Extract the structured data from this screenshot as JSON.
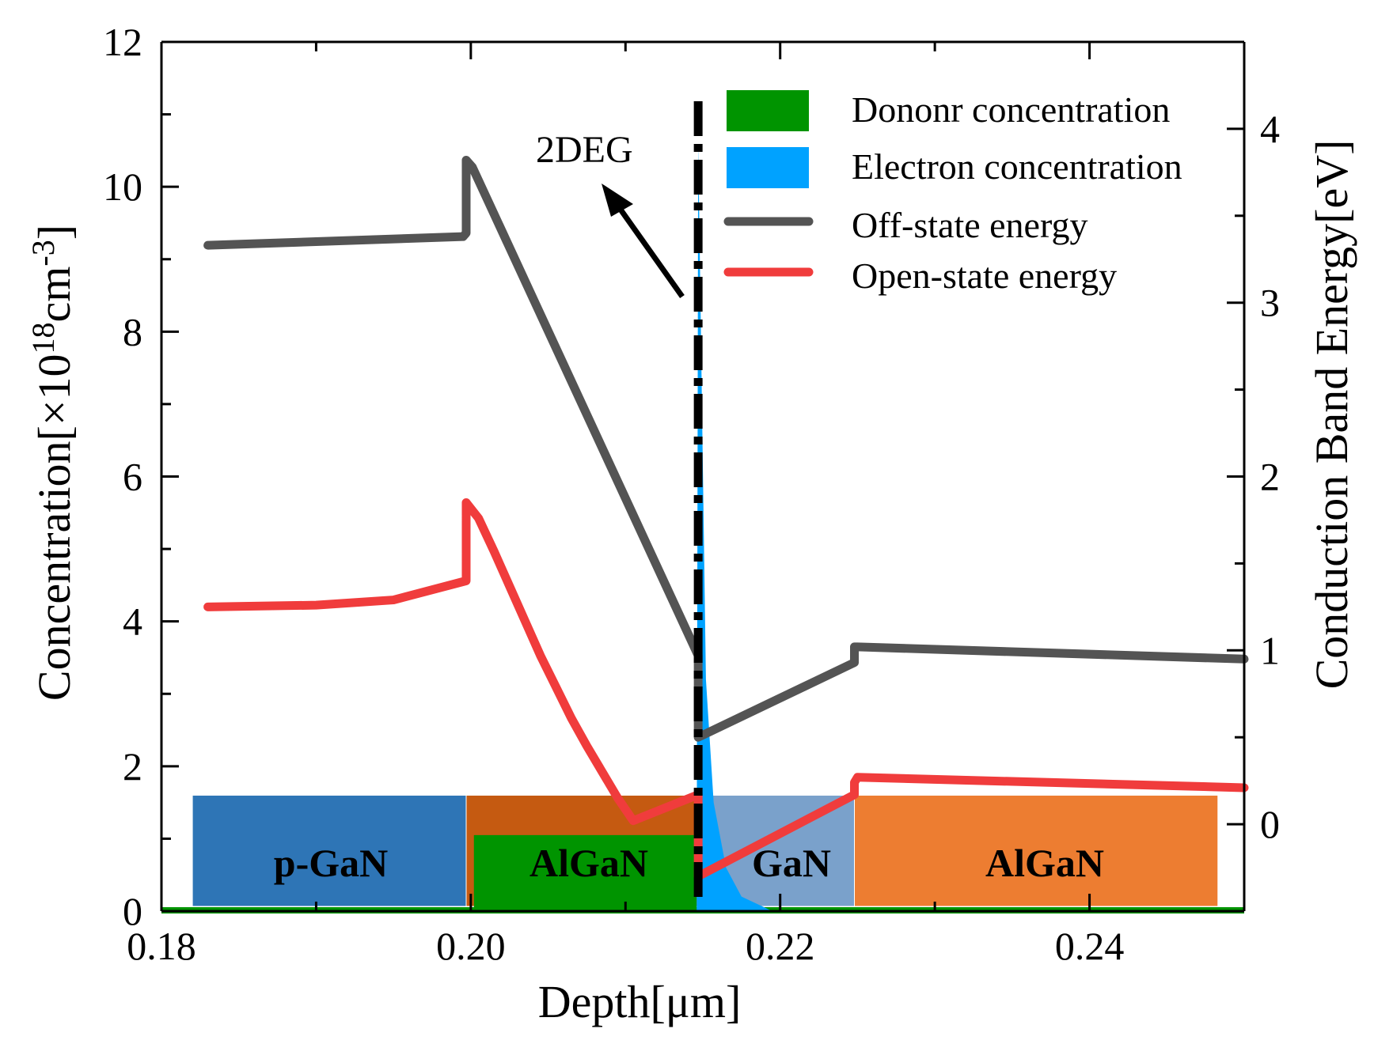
{
  "chart_data": {
    "type": "line",
    "xlabel": "Depth[μm]",
    "ylabel_left_main": "Concentration[×10",
    "ylabel_left_sup1": "18",
    "ylabel_left_mid": "cm",
    "ylabel_left_sup2": "-3",
    "ylabel_left_end": "]",
    "ylabel_right": "Conduction Band Energy[eV]",
    "xlim": [
      0.18,
      0.25
    ],
    "ylim_left": [
      0,
      12
    ],
    "ylim_right": [
      -0.5,
      4.5
    ],
    "x_ticks": [
      0.18,
      0.2,
      0.22,
      0.24
    ],
    "x_tick_labels": [
      "0.18",
      "0.20",
      "0.22",
      "0.24"
    ],
    "y_left_ticks": [
      0,
      2,
      4,
      6,
      8,
      10,
      12
    ],
    "y_left_tick_labels": [
      "0",
      "2",
      "4",
      "6",
      "8",
      "10",
      "12"
    ],
    "y_right_ticks": [
      0,
      1,
      2,
      3,
      4
    ],
    "y_right_tick_labels": [
      "0",
      "1",
      "2",
      "3",
      "4"
    ],
    "layers": [
      {
        "name": "p-GaN",
        "x0": 0.182,
        "x1": 0.1997,
        "top": 1.6,
        "color": "#2e75b6"
      },
      {
        "name": "AlGaN",
        "x0": 0.1997,
        "x1": 0.2147,
        "top": 1.6,
        "color": "#c55a11"
      },
      {
        "name": "GaN",
        "x0": 0.2147,
        "x1": 0.2248,
        "top": 1.6,
        "color": "#7aa1cb"
      },
      {
        "name": "AlGaN",
        "x0": 0.2248,
        "x1": 0.2483,
        "top": 1.6,
        "color": "#ed7d31"
      }
    ],
    "donor_concentration": {
      "name": "Dononr   concentration",
      "color": "#009400",
      "axis": "left",
      "points": [
        [
          0.18,
          0.0
        ],
        [
          0.2002,
          0.0
        ],
        [
          0.2002,
          1.05
        ],
        [
          0.2146,
          1.05
        ],
        [
          0.2146,
          0.0
        ],
        [
          0.25,
          0.0
        ]
      ]
    },
    "electron_concentration": {
      "name": "Electron concentration",
      "color": "#00a2ff",
      "axis": "left",
      "points": [
        [
          0.2146,
          0.0
        ],
        [
          0.2147,
          10.6
        ],
        [
          0.2152,
          3.2
        ],
        [
          0.2157,
          1.5
        ],
        [
          0.2165,
          0.6
        ],
        [
          0.2175,
          0.2
        ],
        [
          0.2195,
          0.0
        ]
      ]
    },
    "series": [
      {
        "name": "Off-state         energy",
        "color": "#545454",
        "axis": "right",
        "points": [
          [
            0.183,
            3.33
          ],
          [
            0.1995,
            3.38
          ],
          [
            0.1997,
            3.4
          ],
          [
            0.1997,
            3.82
          ],
          [
            0.2001,
            3.78
          ],
          [
            0.2147,
            0.97
          ],
          [
            0.2147,
            0.78
          ],
          [
            0.2147,
            0.5
          ],
          [
            0.2248,
            0.93
          ],
          [
            0.2248,
            1.02
          ],
          [
            0.225,
            1.02
          ],
          [
            0.25,
            0.95
          ]
        ]
      },
      {
        "name": "Open-state       energy",
        "color": "#f03c3c",
        "axis": "right",
        "points": [
          [
            0.183,
            1.25
          ],
          [
            0.19,
            1.26
          ],
          [
            0.195,
            1.29
          ],
          [
            0.1997,
            1.4
          ],
          [
            0.1997,
            1.85
          ],
          [
            0.2005,
            1.76
          ],
          [
            0.2015,
            1.57
          ],
          [
            0.2025,
            1.37
          ],
          [
            0.2035,
            1.17
          ],
          [
            0.2045,
            0.97
          ],
          [
            0.2055,
            0.79
          ],
          [
            0.2065,
            0.61
          ],
          [
            0.2075,
            0.45
          ],
          [
            0.2085,
            0.3
          ],
          [
            0.2095,
            0.15
          ],
          [
            0.2105,
            0.02
          ],
          [
            0.2147,
            0.17
          ],
          [
            0.2147,
            0.12
          ],
          [
            0.2147,
            -0.3
          ],
          [
            0.2248,
            0.17
          ],
          [
            0.2248,
            0.24
          ],
          [
            0.225,
            0.27
          ],
          [
            0.25,
            0.21
          ]
        ]
      }
    ],
    "legend": {
      "position": "top-right",
      "items": [
        {
          "label": "Dononr   concentration",
          "kind": "fill",
          "color": "#009400"
        },
        {
          "label": "Electron concentration",
          "kind": "fill",
          "color": "#00a2ff"
        },
        {
          "label": "Off-state         energy",
          "kind": "line",
          "color": "#545454"
        },
        {
          "label": "Open-state       energy",
          "kind": "line",
          "color": "#f03c3c"
        }
      ]
    },
    "annotations": [
      {
        "text": "2DEG",
        "kind": "arrow-label"
      }
    ],
    "interface_line_x": 0.2147
  }
}
